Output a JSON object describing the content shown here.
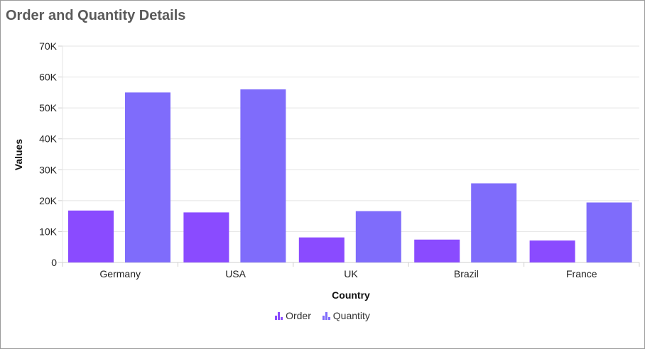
{
  "chart_data": {
    "type": "bar",
    "title": "Order and Quantity Details",
    "xlabel": "Country",
    "ylabel": "Values",
    "categories": [
      "Germany",
      "USA",
      "UK",
      "Brazil",
      "France"
    ],
    "series": [
      {
        "name": "Order",
        "values": [
          16800,
          16200,
          8100,
          7400,
          7100
        ],
        "color": "#8a4bff"
      },
      {
        "name": "Quantity",
        "values": [
          55000,
          56000,
          16600,
          25600,
          19400
        ],
        "color": "#7f6cfb"
      }
    ],
    "ylim": [
      0,
      70000
    ],
    "yticks": [
      0,
      10000,
      20000,
      30000,
      40000,
      50000,
      60000,
      70000
    ],
    "ytick_labels": [
      "0",
      "10K",
      "20K",
      "30K",
      "40K",
      "50K",
      "60K",
      "70K"
    ],
    "grid": true,
    "legend_position": "bottom"
  }
}
